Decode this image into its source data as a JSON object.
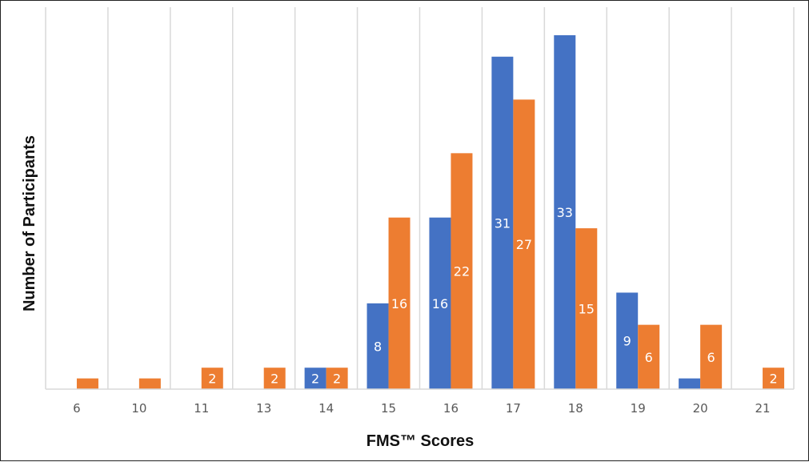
{
  "chart_data": {
    "type": "bar",
    "xlabel": "FMS™ Scores",
    "ylabel": "Number of Participants",
    "categories": [
      "6",
      "10",
      "11",
      "13",
      "14",
      "15",
      "16",
      "17",
      "18",
      "19",
      "20",
      "21"
    ],
    "series": [
      {
        "values": [
          0,
          0,
          0,
          0,
          2,
          8,
          16,
          31,
          33,
          9,
          1,
          0
        ],
        "data_labels": [
          "",
          "",
          "",
          "",
          "2",
          "8",
          "16",
          "31",
          "33",
          "9",
          "",
          ""
        ]
      },
      {
        "values": [
          1,
          1,
          2,
          2,
          2,
          16,
          22,
          27,
          15,
          6,
          6,
          2
        ],
        "data_labels": [
          "",
          "",
          "2",
          "2",
          "2",
          "16",
          "22",
          "27",
          "15",
          "6",
          "6",
          "2"
        ]
      }
    ],
    "ylim": [
      0,
      33
    ],
    "grid": "vertical category separators",
    "legend": "none",
    "colors": {
      "series1": "#4472C4",
      "series2": "#ED7D31",
      "grid": "#D9D9D9"
    }
  }
}
